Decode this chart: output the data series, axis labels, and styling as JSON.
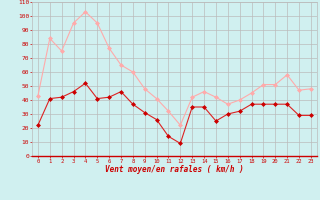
{
  "hours": [
    0,
    1,
    2,
    3,
    4,
    5,
    6,
    7,
    8,
    9,
    10,
    11,
    12,
    13,
    14,
    15,
    16,
    17,
    18,
    19,
    20,
    21,
    22,
    23
  ],
  "wind_avg": [
    22,
    41,
    42,
    46,
    52,
    41,
    42,
    46,
    37,
    31,
    26,
    14,
    9,
    35,
    35,
    25,
    30,
    32,
    37,
    37,
    37,
    37,
    29,
    29
  ],
  "wind_gust": [
    43,
    84,
    75,
    95,
    103,
    95,
    77,
    65,
    60,
    48,
    41,
    32,
    22,
    42,
    46,
    42,
    37,
    40,
    45,
    51,
    51,
    58,
    47,
    48
  ],
  "line_avg_color": "#dd2222",
  "line_gust_color": "#ffaaaa",
  "marker_avg_color": "#cc0000",
  "marker_gust_color": "#ffaaaa",
  "bg_color": "#d0f0f0",
  "grid_color": "#bbbbbb",
  "xlabel": "Vent moyen/en rafales ( km/h )",
  "xlabel_color": "#cc0000",
  "tick_color": "#cc0000",
  "ylim": [
    0,
    110
  ],
  "yticks": [
    0,
    10,
    20,
    30,
    40,
    50,
    60,
    70,
    80,
    90,
    100,
    110
  ]
}
